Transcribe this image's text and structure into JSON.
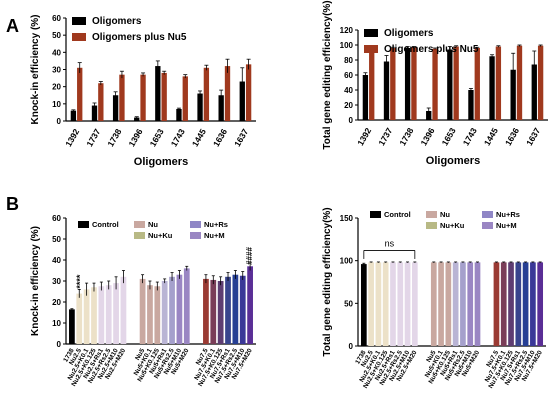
{
  "panel_labels": [
    "A",
    "B"
  ],
  "chart_data": [
    {
      "type": "bar",
      "ylabel": "Knock-in efficiency (%)",
      "xlabel": "Oligomers",
      "categories": [
        "1392",
        "1737",
        "1738",
        "1396",
        "1653",
        "1743",
        "1445",
        "1636",
        "1637"
      ],
      "yticks": [
        0,
        10,
        20,
        30,
        40,
        50,
        60
      ],
      "ylim": [
        0,
        60
      ],
      "legend": "top-left",
      "series": [
        {
          "name": "Oligomers",
          "color": "#000000",
          "values": [
            6,
            9,
            15,
            2,
            32,
            7,
            16,
            15,
            23
          ],
          "errors": [
            0.5,
            1.5,
            2,
            0.5,
            3,
            0.5,
            1.5,
            3,
            8
          ]
        },
        {
          "name": "Oligomers plus Nu5",
          "color": "#a0391e",
          "values": [
            31,
            22,
            27,
            27,
            28,
            26,
            31,
            32,
            33
          ],
          "errors": [
            3,
            1,
            2,
            1,
            1,
            1,
            1.5,
            4,
            3
          ]
        }
      ],
      "significance": []
    },
    {
      "type": "bar",
      "ylabel": "Total gene editing efficiency(%)",
      "xlabel": "Oligomers",
      "categories": [
        "1392",
        "1737",
        "1738",
        "1396",
        "1653",
        "1743",
        "1445",
        "1636",
        "1637"
      ],
      "yticks": [
        0,
        20,
        40,
        60,
        80,
        100,
        120
      ],
      "ylim": [
        0,
        120
      ],
      "legend": "top-left",
      "series": [
        {
          "name": "Oligomers",
          "color": "#000000",
          "values": [
            60,
            78,
            96,
            12,
            94,
            40,
            85,
            67,
            74
          ],
          "errors": [
            3,
            8,
            2,
            4,
            4,
            2,
            2,
            22,
            18
          ]
        },
        {
          "name": "Oligomers plus Nu5",
          "color": "#a0391e",
          "values": [
            96,
            96,
            97,
            95,
            98,
            96,
            98,
            99,
            99
          ],
          "errors": [
            1,
            1,
            1,
            1,
            1,
            1,
            1,
            1,
            1
          ]
        }
      ],
      "significance": []
    },
    {
      "type": "bar",
      "ylabel": "Knock-in efficiency (%)",
      "yticks": [
        0,
        10,
        20,
        30,
        40,
        50,
        60
      ],
      "ylim": [
        0,
        60
      ],
      "legend": "top",
      "legend_entries": [
        {
          "name": "Control",
          "color": "#000000"
        },
        {
          "name": "Nu",
          "color": "#c9a8a0"
        },
        {
          "name": "Nu+Ku",
          "color": "#b8b985"
        },
        {
          "name": "Nu+Rs",
          "color": "#8f86c6"
        },
        {
          "name": "Nu+M",
          "color": "#9a86c3"
        }
      ],
      "groups": [
        {
          "categories": [
            "1738",
            "Nu2.5",
            "Nu2.5+K0.1",
            "Nu2.5+K0.125",
            "Nu2.5+Rs1",
            "Nu2.5+Rs2.5",
            "Nu2.5+M10",
            "Nu2.5+M20"
          ],
          "values": [
            16.5,
            24,
            26,
            27,
            27.5,
            28,
            29,
            32
          ],
          "errors": [
            0.3,
            2,
            3,
            2,
            2,
            2,
            3,
            3
          ],
          "colors": [
            "#000000",
            "#ece1c8",
            "#ece1c8",
            "#ece1c8",
            "#e3d6e8",
            "#e3d6e8",
            "#e3d6e8",
            "#e3d6e8"
          ]
        },
        {
          "categories": [
            "Nu5",
            "Nu5+K0.1",
            "Nu5+K0.125",
            "Nu5+Rs1",
            "Nu5+Rs2.5",
            "Nu5+M10",
            "Nu5+M20"
          ],
          "values": [
            31,
            28,
            27.5,
            30,
            32,
            33,
            36
          ],
          "errors": [
            2,
            2,
            2,
            1,
            2,
            2,
            1
          ],
          "colors": [
            "#c9a8a0",
            "#c9a8a0",
            "#c9a8a0",
            "#b9b4d4",
            "#a5a0cc",
            "#9a86c3",
            "#9a86c3"
          ]
        },
        {
          "categories": [
            "Nu7.5",
            "Nu7.5+K0.1",
            "Nu7.5+K0.125",
            "Nu7.5+Rs1",
            "Nu7.5+Rs2.5",
            "Nu7.5+M10",
            "Nu7.5+M20"
          ],
          "values": [
            31,
            30.5,
            30,
            32,
            33,
            32.5,
            37
          ],
          "errors": [
            2,
            2,
            2,
            2,
            2,
            2,
            2
          ],
          "colors": [
            "#9a3a33",
            "#7a3d58",
            "#5e3d72",
            "#38448d",
            "#263f94",
            "#3b3898",
            "#5a2e96"
          ]
        }
      ],
      "significance": [
        "****",
        "####"
      ]
    },
    {
      "type": "bar",
      "ylabel": "Total gene editing efficiency(%)",
      "yticks": [
        0,
        50,
        100,
        150
      ],
      "ylim": [
        0,
        150
      ],
      "legend": "top",
      "legend_entries": [
        {
          "name": "Control",
          "color": "#000000"
        },
        {
          "name": "Nu",
          "color": "#c9a8a0"
        },
        {
          "name": "Nu+Ku",
          "color": "#b8b985"
        },
        {
          "name": "Nu+Rs",
          "color": "#8f86c6"
        },
        {
          "name": "Nu+M",
          "color": "#9a86c3"
        }
      ],
      "groups": [
        {
          "categories": [
            "1738",
            "Nu2.5",
            "Nu2.5+K0.1",
            "Nu2.5+K0.125",
            "Nu2.5+Rs1",
            "Nu2.5+Rs2.5",
            "Nu2.5+M10",
            "Nu2.5+M20"
          ],
          "values": [
            96,
            98,
            98,
            98,
            98,
            98,
            98,
            98
          ],
          "errors": [
            1,
            0.5,
            0.5,
            0.5,
            0.5,
            0.5,
            0.5,
            0.5
          ],
          "colors": [
            "#000000",
            "#ece1c8",
            "#ece1c8",
            "#ece1c8",
            "#e3d6e8",
            "#e3d6e8",
            "#e3d6e8",
            "#e3d6e8"
          ]
        },
        {
          "categories": [
            "Nu5",
            "Nu5+K0.1",
            "Nu5+K0.125",
            "Nu5+Rs1",
            "Nu5+Rs2.5",
            "Nu5+M10",
            "Nu5+M20"
          ],
          "values": [
            98,
            98,
            98,
            98,
            98,
            98,
            98
          ],
          "errors": [
            0.5,
            0.5,
            0.5,
            0.5,
            0.5,
            0.5,
            0.5
          ],
          "colors": [
            "#c9a8a0",
            "#c9a8a0",
            "#c9a8a0",
            "#b9b4d4",
            "#a5a0cc",
            "#9a86c3",
            "#9a86c3"
          ]
        },
        {
          "categories": [
            "Nu7.5",
            "Nu7.5+K0.1",
            "Nu7.5+K0.125",
            "Nu7.5+Rs1",
            "Nu7.5+Rs2.5",
            "Nu7.5+M10",
            "Nu7.5+M20"
          ],
          "values": [
            98,
            98,
            98,
            98,
            98,
            98,
            98
          ],
          "errors": [
            0.5,
            0.5,
            0.5,
            0.5,
            0.5,
            0.5,
            0.5
          ],
          "colors": [
            "#9a3a33",
            "#7a3d58",
            "#5e3d72",
            "#38448d",
            "#263f94",
            "#3b3898",
            "#5a2e96"
          ]
        }
      ],
      "significance": [
        "ns"
      ]
    }
  ]
}
